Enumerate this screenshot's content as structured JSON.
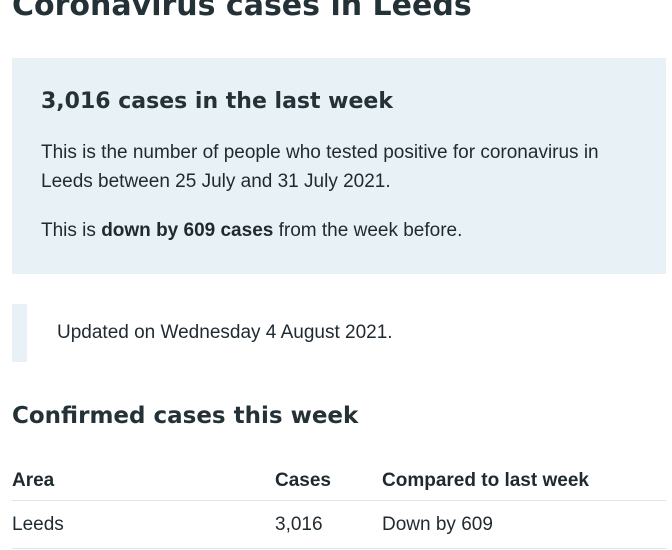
{
  "page": {
    "title": "Coronavirus cases in Leeds"
  },
  "summary": {
    "heading": "3,016 cases in the last week",
    "description": "This is the number of people who tested positive for coronavirus in Leeds between 25 July and 31 July 2021.",
    "change_prefix": "This is ",
    "change_emphasis": "down by 609 cases",
    "change_suffix": " from the week before."
  },
  "updated": {
    "text": "Updated on Wednesday 4 August 2021."
  },
  "confirmed": {
    "heading": "Confirmed cases this week",
    "columns": [
      "Area",
      "Cases",
      "Compared to last week"
    ],
    "rows": [
      {
        "area": "Leeds",
        "cases": "3,016",
        "compared": "Down by 609"
      }
    ]
  }
}
